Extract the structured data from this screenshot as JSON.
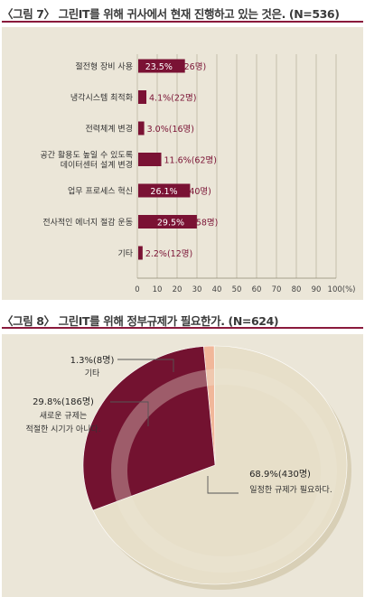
{
  "figure1": {
    "title": "〈그림 7〉 그린IT를 위해 귀사에서 현재 진행하고 있는 것은. (N=536)",
    "chart_data": {
      "type": "bar",
      "orientation": "horizontal",
      "categories": [
        [
          "절전형 장비 사용"
        ],
        [
          "냉각시스템 최적화"
        ],
        [
          "전력체계 변경"
        ],
        [
          "공간 활용도 높일 수 있도록",
          "데이터센터 설계 변경"
        ],
        [
          "업무 프로세스 혁신"
        ],
        [
          "전사적인 에너지 절감 운동"
        ],
        [
          "기타"
        ]
      ],
      "values": [
        23.5,
        4.1,
        3.0,
        11.6,
        26.1,
        29.5,
        2.2
      ],
      "counts": [
        "126명",
        "22명",
        "16명",
        "62명",
        "140명",
        "158명",
        "12명"
      ],
      "data_labels": [
        "23.5%(126명)",
        "4.1%(22명)",
        "3.0%(16명)",
        "11.6%(62명)",
        "26.1%(140명)",
        "29.5%(158명)",
        "2.2%(12명)"
      ],
      "xlim": [
        0,
        100
      ],
      "x_ticks": [
        "0",
        "10",
        "20",
        "30",
        "40",
        "50",
        "60",
        "70",
        "80",
        "90",
        "100(%)"
      ],
      "grid": true,
      "colors": {
        "bar": "#7a1234",
        "grid": "#bdb6a3",
        "background": "#ebe6d8"
      }
    }
  },
  "figure2": {
    "title": "〈그림 8〉 그린IT를 위해 정부규제가 필요한가. (N=624)",
    "chart_data": {
      "type": "pie",
      "slices": [
        {
          "label": "일정한 규제가 필요하다.",
          "value": 68.9,
          "count_label": "68.9%(430명)",
          "color": "#e7dfc9"
        },
        {
          "label": "새로운 규제는 적절한 시기가 아니다.",
          "value": 29.8,
          "count_label": "29.8%(186명)",
          "color": "#731230"
        },
        {
          "label": "기타",
          "value": 1.3,
          "count_label": "1.3%(8명)",
          "color": "#f1b79a"
        }
      ],
      "label_lines": {
        "slice0": [
          "68.9%(430명)",
          "일정한 규제가 필요하다."
        ],
        "slice1": [
          "29.8%(186명)",
          "새로운 규제는",
          "적절한 시기가 아니다."
        ],
        "slice2": [
          "1.3%(8명)",
          "기타"
        ]
      },
      "colors": {
        "shadow": "#d8cfb6",
        "rim": "#c9bf9f"
      }
    }
  }
}
